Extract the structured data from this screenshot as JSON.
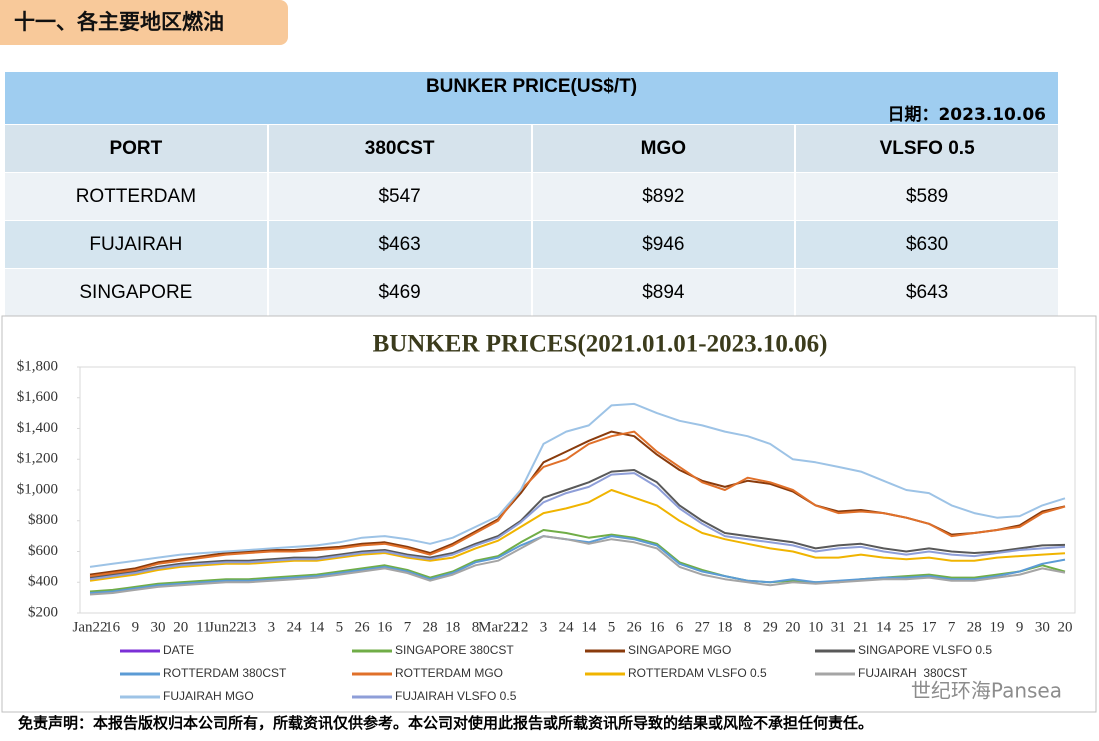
{
  "header": {
    "title": "十一、各主要地区燃油"
  },
  "table": {
    "title": "BUNKER PRICE(US$/T)",
    "date": "日期：2023.10.06",
    "columns": [
      "PORT",
      "380CST",
      "MGO",
      "VLSFO 0.5"
    ],
    "rows": [
      [
        "ROTTERDAM",
        "$547",
        "$892",
        "$589"
      ],
      [
        "FUJAIRAH",
        "$463",
        "$946",
        "$630"
      ],
      [
        "SINGAPORE",
        "$469",
        "$894",
        "$643"
      ]
    ]
  },
  "chart_data": {
    "type": "line",
    "title": "BUNKER PRICES(2021.01.01-2023.10.06)",
    "categories": [
      "Jan22",
      "16",
      "9",
      "30",
      "20",
      "11",
      "Jun22",
      "13",
      "3",
      "24",
      "14",
      "5",
      "26",
      "16",
      "7",
      "28",
      "18",
      "8",
      "Mar22",
      "12",
      "3",
      "24",
      "14",
      "5",
      "26",
      "16",
      "6",
      "27",
      "18",
      "8",
      "29",
      "20",
      "10",
      "31",
      "21",
      "14",
      "25",
      "17",
      "7",
      "28",
      "19",
      "9",
      "30",
      "20"
    ],
    "ylim": [
      200,
      1800
    ],
    "yticks": [
      {
        "value": 200,
        "label": "$200"
      },
      {
        "value": 400,
        "label": "$400"
      },
      {
        "value": 600,
        "label": "$600"
      },
      {
        "value": 800,
        "label": "$800"
      },
      {
        "value": 1000,
        "label": "$1,000"
      },
      {
        "value": 1200,
        "label": "$1,200"
      },
      {
        "value": 1400,
        "label": "$1,400"
      },
      {
        "value": 1600,
        "label": "$1,600"
      },
      {
        "value": 1800,
        "label": "$1,800"
      }
    ],
    "grid": false,
    "series": [
      {
        "name": "DATE",
        "color": "#7b2fd6"
      },
      {
        "name": "SINGAPORE 380CST",
        "color": "#70ad47",
        "values": [
          340,
          350,
          370,
          390,
          400,
          410,
          420,
          420,
          430,
          440,
          450,
          470,
          490,
          510,
          480,
          430,
          470,
          540,
          570,
          660,
          740,
          720,
          690,
          710,
          690,
          650,
          530,
          480,
          440,
          410,
          400,
          410,
          400,
          400,
          420,
          430,
          440,
          450,
          430,
          430,
          450,
          470,
          510,
          469
        ]
      },
      {
        "name": "SINGAPORE MGO",
        "color": "#8a3b0c",
        "values": [
          450,
          470,
          490,
          530,
          550,
          570,
          590,
          600,
          610,
          610,
          620,
          630,
          650,
          660,
          630,
          590,
          650,
          730,
          810,
          980,
          1180,
          1250,
          1320,
          1380,
          1350,
          1230,
          1130,
          1060,
          1020,
          1060,
          1040,
          990,
          900,
          860,
          870,
          850,
          820,
          780,
          710,
          720,
          740,
          770,
          860,
          894
        ]
      },
      {
        "name": "SINGAPORE VLSFO 0.5",
        "color": "#595959",
        "values": [
          430,
          450,
          470,
          500,
          520,
          530,
          540,
          540,
          550,
          560,
          560,
          580,
          600,
          610,
          580,
          560,
          590,
          650,
          700,
          800,
          950,
          1000,
          1050,
          1120,
          1130,
          1050,
          900,
          800,
          720,
          700,
          680,
          660,
          620,
          640,
          650,
          620,
          600,
          620,
          600,
          590,
          600,
          620,
          640,
          643
        ]
      },
      {
        "name": "ROTTERDAM 380CST",
        "color": "#5b9bd5",
        "values": [
          330,
          340,
          360,
          380,
          390,
          400,
          410,
          410,
          420,
          430,
          440,
          460,
          480,
          500,
          470,
          420,
          460,
          530,
          560,
          640,
          700,
          680,
          660,
          700,
          680,
          640,
          520,
          470,
          440,
          410,
          400,
          420,
          400,
          410,
          420,
          430,
          430,
          440,
          420,
          420,
          440,
          470,
          520,
          547
        ]
      },
      {
        "name": "ROTTERDAM MGO",
        "color": "#e0702a",
        "values": [
          440,
          460,
          480,
          520,
          540,
          560,
          580,
          590,
          600,
          600,
          610,
          620,
          640,
          650,
          620,
          580,
          640,
          720,
          800,
          1000,
          1150,
          1200,
          1300,
          1350,
          1380,
          1250,
          1150,
          1050,
          1000,
          1080,
          1050,
          1000,
          900,
          850,
          860,
          850,
          820,
          780,
          700,
          720,
          740,
          760,
          850,
          892
        ]
      },
      {
        "name": "ROTTERDAM VLSFO 0.5",
        "color": "#f0b400",
        "values": [
          410,
          430,
          450,
          480,
          500,
          510,
          520,
          520,
          530,
          540,
          540,
          560,
          580,
          590,
          560,
          540,
          560,
          620,
          670,
          760,
          850,
          880,
          920,
          1000,
          950,
          900,
          800,
          720,
          680,
          650,
          620,
          600,
          560,
          560,
          580,
          560,
          550,
          560,
          540,
          540,
          560,
          570,
          580,
          589
        ]
      },
      {
        "name": "FUJAIRAH  380CST",
        "color": "#a5a5a5",
        "values": [
          320,
          330,
          350,
          370,
          380,
          390,
          400,
          400,
          410,
          420,
          430,
          450,
          470,
          490,
          460,
          410,
          450,
          510,
          540,
          620,
          700,
          680,
          650,
          680,
          660,
          620,
          500,
          450,
          420,
          400,
          380,
          400,
          390,
          400,
          410,
          420,
          420,
          430,
          410,
          410,
          430,
          450,
          490,
          463
        ]
      },
      {
        "name": "FUJAIRAH MGO",
        "color": "#9dc3e6",
        "values": [
          500,
          520,
          540,
          560,
          580,
          590,
          600,
          610,
          620,
          630,
          640,
          660,
          690,
          700,
          680,
          650,
          690,
          760,
          830,
          1000,
          1300,
          1380,
          1420,
          1550,
          1560,
          1500,
          1450,
          1420,
          1380,
          1350,
          1300,
          1200,
          1180,
          1150,
          1120,
          1060,
          1000,
          980,
          900,
          850,
          820,
          830,
          900,
          946
        ]
      },
      {
        "name": "FUJAIRAH VLSFO 0.5",
        "color": "#8e9ed8",
        "values": [
          420,
          440,
          460,
          490,
          510,
          520,
          530,
          530,
          540,
          550,
          550,
          570,
          590,
          600,
          570,
          550,
          580,
          640,
          690,
          790,
          920,
          980,
          1020,
          1100,
          1110,
          1020,
          880,
          780,
          700,
          680,
          660,
          640,
          600,
          620,
          630,
          600,
          580,
          600,
          580,
          570,
          590,
          610,
          620,
          630
        ]
      }
    ]
  },
  "watermark": "世纪环海Pansea",
  "footer": "免责声明：本报告版权归本公司所有，所载资讯仅供参考。本公司对使用此报告或所载资讯所导致的结果或风险不承担任何责任。"
}
